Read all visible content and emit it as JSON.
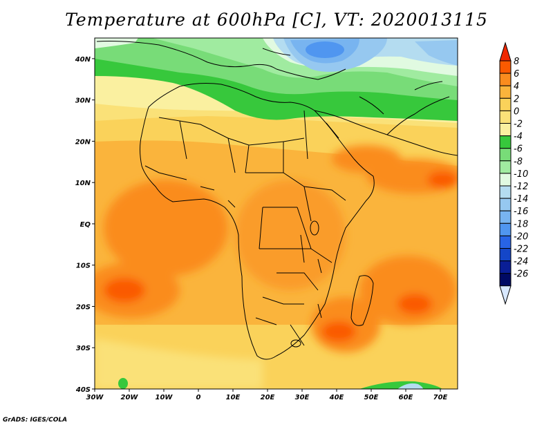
{
  "title": "Temperature at 600hPa [C], VT: 2020013115",
  "footer": "GrADS: IGES/COLA",
  "map": {
    "variable": "Temperature",
    "level_hPa": 600,
    "units": "C",
    "valid_time": "2020013115",
    "lon_range": [
      -30,
      75
    ],
    "lat_range": [
      -40,
      45
    ],
    "lon_ticks": [
      {
        "value": -30,
        "label": "30W"
      },
      {
        "value": -20,
        "label": "20W"
      },
      {
        "value": -10,
        "label": "10W"
      },
      {
        "value": 0,
        "label": "0"
      },
      {
        "value": 10,
        "label": "10E"
      },
      {
        "value": 20,
        "label": "20E"
      },
      {
        "value": 30,
        "label": "30E"
      },
      {
        "value": 40,
        "label": "40E"
      },
      {
        "value": 50,
        "label": "50E"
      },
      {
        "value": 60,
        "label": "60E"
      },
      {
        "value": 70,
        "label": "70E"
      }
    ],
    "lat_ticks": [
      {
        "value": 40,
        "label": "40N"
      },
      {
        "value": 30,
        "label": "30N"
      },
      {
        "value": 20,
        "label": "20N"
      },
      {
        "value": 10,
        "label": "10N"
      },
      {
        "value": 0,
        "label": "EQ"
      },
      {
        "value": -10,
        "label": "10S"
      },
      {
        "value": -20,
        "label": "20S"
      },
      {
        "value": -30,
        "label": "30S"
      },
      {
        "value": -40,
        "label": "40S"
      }
    ]
  },
  "colorbar": {
    "levels": [
      "8",
      "6",
      "4",
      "2",
      "0",
      "-2",
      "-4",
      "-6",
      "-8",
      "-10",
      "-12",
      "-14",
      "-16",
      "-18",
      "-20",
      "-22",
      "-24",
      "-26"
    ],
    "colors": [
      "#f02800",
      "#fa5a00",
      "#fa8c1e",
      "#fab43c",
      "#fad25a",
      "#fae178",
      "#faf0a0",
      "#37c83c",
      "#78dc78",
      "#a0eba0",
      "#e1fae1",
      "#b4dcf0",
      "#96c8f0",
      "#78b4f0",
      "#5096f0",
      "#2864e6",
      "#1446c8",
      "#0a1e96",
      "#000a64"
    ],
    "top_color": "#f02800",
    "bottom_color": "#d8e8ff"
  }
}
